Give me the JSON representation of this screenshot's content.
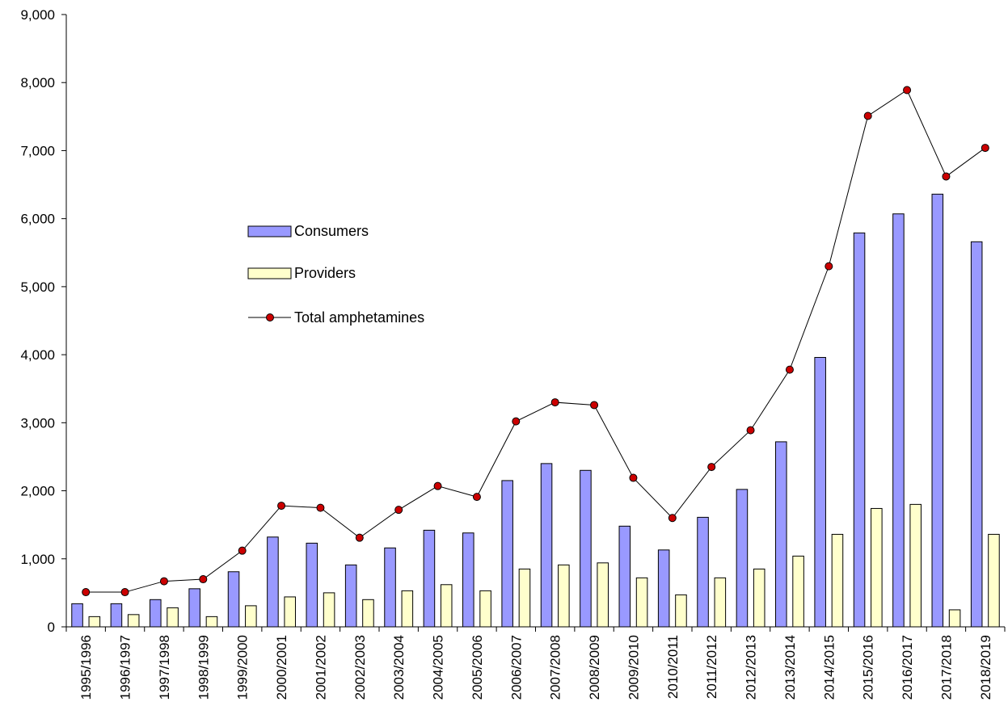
{
  "chart_data": {
    "type": "bar",
    "categories": [
      "1995/1996",
      "1996/1997",
      "1997/1998",
      "1998/1999",
      "1999/2000",
      "2000/2001",
      "2001/2002",
      "2002/2003",
      "2003/2004",
      "2004/2005",
      "2005/2006",
      "2006/2007",
      "2007/2008",
      "2008/2009",
      "2009/2010",
      "2010/2011",
      "2011/2012",
      "2012/2013",
      "2013/2014",
      "2014/2015",
      "2015/2016",
      "2016/2017",
      "2017/2018",
      "2018/2019"
    ],
    "series": [
      {
        "name": "Consumers",
        "kind": "bar",
        "color": "#9999ff",
        "values": [
          340,
          340,
          400,
          560,
          810,
          1320,
          1230,
          910,
          1160,
          1420,
          1380,
          2150,
          2400,
          2300,
          1480,
          1130,
          1610,
          2020,
          2720,
          3960,
          5790,
          6070,
          6360,
          5660
        ]
      },
      {
        "name": "Providers",
        "kind": "bar",
        "color": "#ffffcc",
        "values": [
          150,
          180,
          280,
          150,
          310,
          440,
          500,
          400,
          530,
          620,
          530,
          850,
          910,
          940,
          720,
          470,
          720,
          850,
          1040,
          1360,
          1740,
          1800,
          250,
          1360
        ]
      },
      {
        "name": "Total amphetamines",
        "kind": "line",
        "color": "#000000",
        "marker_color": "#cc0000",
        "values": [
          510,
          510,
          670,
          700,
          1120,
          1780,
          1750,
          1310,
          1720,
          2070,
          1910,
          3020,
          3300,
          3260,
          2190,
          1600,
          2350,
          2890,
          3780,
          5300,
          7510,
          7890,
          6620,
          7040
        ]
      }
    ],
    "ylim": [
      0,
      9000
    ],
    "yticks": [
      "0",
      "1,000",
      "2,000",
      "3,000",
      "4,000",
      "5,000",
      "6,000",
      "7,000",
      "8,000",
      "9,000"
    ],
    "ytick_values": [
      0,
      1000,
      2000,
      3000,
      4000,
      5000,
      6000,
      7000,
      8000,
      9000
    ],
    "title": "",
    "xlabel": "",
    "ylabel": "",
    "grid": false,
    "legend_position": "upper-left-center"
  }
}
